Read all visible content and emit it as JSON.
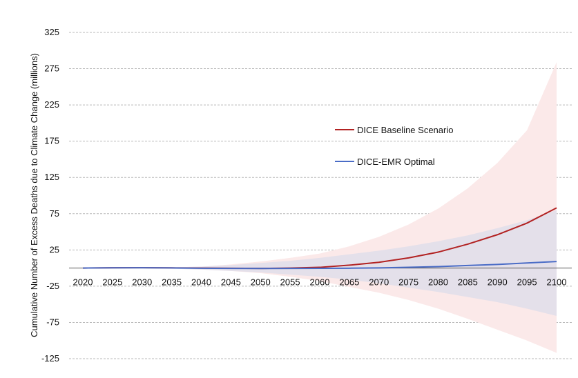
{
  "chart_data": {
    "type": "line",
    "title": "",
    "xlabel": "",
    "ylabel": "Cumulative Number of Excess Deaths due to Climate Change (millions)",
    "x": [
      2020,
      2025,
      2030,
      2035,
      2040,
      2045,
      2050,
      2055,
      2060,
      2065,
      2070,
      2075,
      2080,
      2085,
      2090,
      2095,
      2100
    ],
    "x_tick_labels": [
      "2020",
      "2025",
      "2030",
      "2035",
      "2040",
      "2045",
      "2050",
      "2055",
      "2060",
      "2065",
      "2070",
      "2075",
      "2080",
      "2085",
      "2090",
      "2095",
      "2100"
    ],
    "ylim": [
      -125,
      325
    ],
    "y_ticks": [
      -125,
      -75,
      -25,
      25,
      75,
      125,
      175,
      225,
      275,
      325
    ],
    "y_tick_labels": [
      "-125",
      "-75",
      "-25",
      "25",
      "75",
      "125",
      "175",
      "225",
      "275",
      "325"
    ],
    "grid": "horizontal dashed",
    "legend_position": "center-right",
    "series": [
      {
        "name": "DICE Baseline Scenario",
        "color": "#b22222",
        "values": [
          0,
          0.5,
          0.6,
          0.3,
          0,
          -0.3,
          -0.5,
          0,
          1,
          4,
          8,
          14,
          22,
          33,
          46,
          62,
          83
        ],
        "band_upper": [
          0,
          0.5,
          0.8,
          1,
          2,
          5,
          9,
          14,
          20,
          30,
          43,
          60,
          82,
          110,
          145,
          190,
          284
        ],
        "band_lower": [
          0,
          0,
          -0.5,
          -1,
          -2,
          -4,
          -7,
          -12,
          -18,
          -26,
          -34,
          -44,
          -56,
          -70,
          -85,
          -100,
          -117
        ],
        "band_color": "#fbe9e9"
      },
      {
        "name": "DICE-EMR Optimal",
        "color": "#4a6cc6",
        "values": [
          0,
          0.4,
          0.5,
          0.2,
          -0.2,
          -0.5,
          -0.6,
          -0.5,
          -0.4,
          -0.2,
          0.2,
          1,
          2,
          3.5,
          5,
          7,
          9
        ],
        "band_upper": [
          0,
          0.5,
          0.8,
          1,
          2,
          4,
          7,
          10,
          14,
          19,
          24,
          30,
          37,
          45,
          55,
          66,
          80
        ],
        "band_lower": [
          0,
          0,
          -0.5,
          -1,
          -2,
          -4,
          -6,
          -9,
          -12,
          -16,
          -21,
          -27,
          -33,
          -40,
          -47,
          -56,
          -66
        ],
        "band_color": "#dcdcea"
      }
    ]
  }
}
